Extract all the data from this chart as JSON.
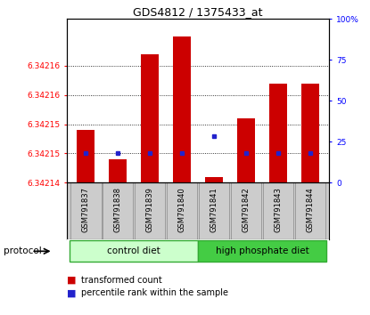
{
  "title": "GDS4812 / 1375433_at",
  "samples": [
    "GSM791837",
    "GSM791838",
    "GSM791839",
    "GSM791840",
    "GSM791841",
    "GSM791842",
    "GSM791843",
    "GSM791844"
  ],
  "transformed_count": [
    6.342149,
    6.342144,
    6.342162,
    6.342165,
    6.342141,
    6.342151,
    6.342157,
    6.342157
  ],
  "percentile_value": [
    6.342145,
    6.342145,
    6.342145,
    6.342145,
    6.342148,
    6.342145,
    6.342145,
    6.342145
  ],
  "y_min": 6.34214,
  "y_max": 6.342168,
  "left_tick_positions": [
    6.34214,
    6.342145,
    6.34215,
    6.342155,
    6.34216
  ],
  "left_tick_labels": [
    "6.34214",
    "6.34215",
    "6.34215",
    "6.34216",
    "6.34216"
  ],
  "right_tick_positions": [
    0,
    25,
    50,
    75,
    100
  ],
  "right_tick_labels": [
    "0",
    "25",
    "50",
    "75",
    "100%"
  ],
  "dotted_lines": [
    6.342145,
    6.34215,
    6.342155,
    6.34216
  ],
  "bar_color": "#cc0000",
  "blue_color": "#2222cc",
  "group1_color": "#ccffcc",
  "group2_color": "#44cc44",
  "group1_label": "control diet",
  "group2_label": "high phosphate diet",
  "label_bg": "#cccccc",
  "legend_bar_label": "transformed count",
  "legend_pct_label": "percentile rank within the sample"
}
